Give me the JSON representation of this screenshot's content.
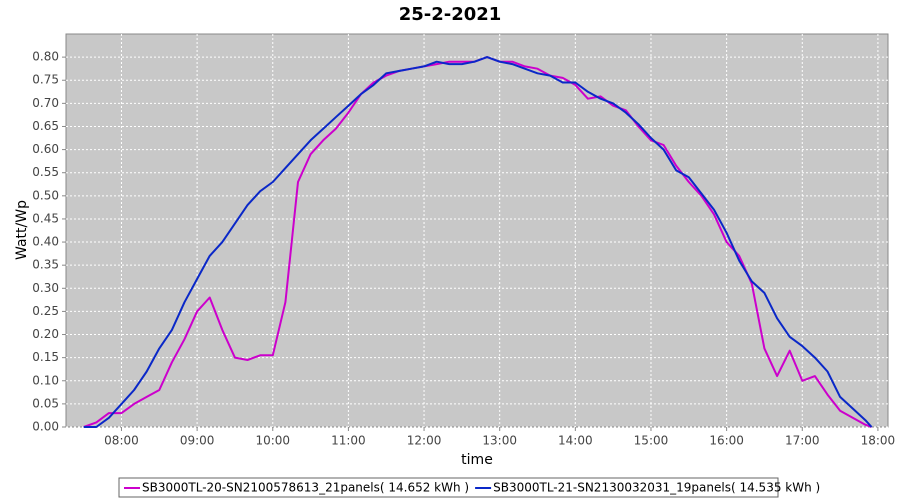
{
  "chart_data": {
    "type": "line",
    "title": "25-2-2021",
    "xlabel": "time",
    "ylabel": "Watt/Wp",
    "x": [
      450,
      460,
      470,
      480,
      490,
      500,
      510,
      520,
      530,
      540,
      550,
      560,
      570,
      580,
      590,
      600,
      610,
      620,
      630,
      640,
      650,
      660,
      670,
      680,
      690,
      700,
      710,
      720,
      730,
      740,
      750,
      760,
      770,
      780,
      790,
      800,
      810,
      820,
      830,
      840,
      850,
      860,
      870,
      880,
      890,
      900,
      910,
      920,
      930,
      940,
      950,
      960,
      970,
      980,
      990,
      1000,
      1010,
      1020,
      1030,
      1040,
      1050,
      1060,
      1070,
      1075
    ],
    "xlim": [
      436,
      1088
    ],
    "xticks": [
      {
        "value": 480,
        "label": "08:00"
      },
      {
        "value": 540,
        "label": "09:00"
      },
      {
        "value": 600,
        "label": "10:00"
      },
      {
        "value": 660,
        "label": "11:00"
      },
      {
        "value": 720,
        "label": "12:00"
      },
      {
        "value": 780,
        "label": "13:00"
      },
      {
        "value": 840,
        "label": "14:00"
      },
      {
        "value": 900,
        "label": "15:00"
      },
      {
        "value": 960,
        "label": "16:00"
      },
      {
        "value": 1020,
        "label": "17:00"
      },
      {
        "value": 1080,
        "label": "18:00"
      }
    ],
    "ylim": [
      0,
      0.85
    ],
    "yticks": [
      {
        "value": 0,
        "label": "0.00"
      },
      {
        "value": 0.05,
        "label": "0.05"
      },
      {
        "value": 0.1,
        "label": "0.10"
      },
      {
        "value": 0.15,
        "label": "0.15"
      },
      {
        "value": 0.2,
        "label": "0.20"
      },
      {
        "value": 0.25,
        "label": "0.25"
      },
      {
        "value": 0.3,
        "label": "0.30"
      },
      {
        "value": 0.35,
        "label": "0.35"
      },
      {
        "value": 0.4,
        "label": "0.40"
      },
      {
        "value": 0.45,
        "label": "0.45"
      },
      {
        "value": 0.5,
        "label": "0.50"
      },
      {
        "value": 0.55,
        "label": "0.55"
      },
      {
        "value": 0.6,
        "label": "0.60"
      },
      {
        "value": 0.65,
        "label": "0.65"
      },
      {
        "value": 0.7,
        "label": "0.70"
      },
      {
        "value": 0.75,
        "label": "0.75"
      },
      {
        "value": 0.8,
        "label": "0.80"
      }
    ],
    "grid": true,
    "legend": "bottom",
    "series": [
      {
        "name": "SB3000TL-20-SN2100578613_21panels( 14.652 kWh )",
        "color": "#cc00cc",
        "values": [
          0,
          0.01,
          0.03,
          0.03,
          0.05,
          0.065,
          0.08,
          0.14,
          0.19,
          0.25,
          0.28,
          0.21,
          0.15,
          0.145,
          0.155,
          0.155,
          0.27,
          0.53,
          0.59,
          0.62,
          0.645,
          0.68,
          0.72,
          0.745,
          0.76,
          0.77,
          0.775,
          0.78,
          0.785,
          0.79,
          0.79,
          0.79,
          0.8,
          0.79,
          0.79,
          0.78,
          0.775,
          0.76,
          0.755,
          0.74,
          0.71,
          0.715,
          0.695,
          0.685,
          0.65,
          0.62,
          0.61,
          0.565,
          0.53,
          0.5,
          0.46,
          0.4,
          0.37,
          0.31,
          0.17,
          0.11,
          0.165,
          0.1,
          0.11,
          0.07,
          0.035,
          0.02,
          0.005,
          0
        ]
      },
      {
        "name": "SB3000TL-21-SN2130032031_19panels( 14.535 kWh )",
        "color": "#0a28c8",
        "values": [
          0,
          0,
          0.02,
          0.05,
          0.08,
          0.12,
          0.17,
          0.21,
          0.27,
          0.32,
          0.37,
          0.4,
          0.44,
          0.48,
          0.51,
          0.53,
          0.56,
          0.59,
          0.62,
          0.645,
          0.67,
          0.695,
          0.72,
          0.74,
          0.765,
          0.77,
          0.775,
          0.78,
          0.79,
          0.785,
          0.785,
          0.79,
          0.8,
          0.79,
          0.785,
          0.775,
          0.765,
          0.76,
          0.745,
          0.745,
          0.725,
          0.71,
          0.7,
          0.68,
          0.655,
          0.625,
          0.6,
          0.555,
          0.54,
          0.505,
          0.47,
          0.42,
          0.36,
          0.315,
          0.29,
          0.235,
          0.195,
          0.175,
          0.15,
          0.12,
          0.065,
          0.04,
          0.015,
          0
        ]
      }
    ]
  }
}
